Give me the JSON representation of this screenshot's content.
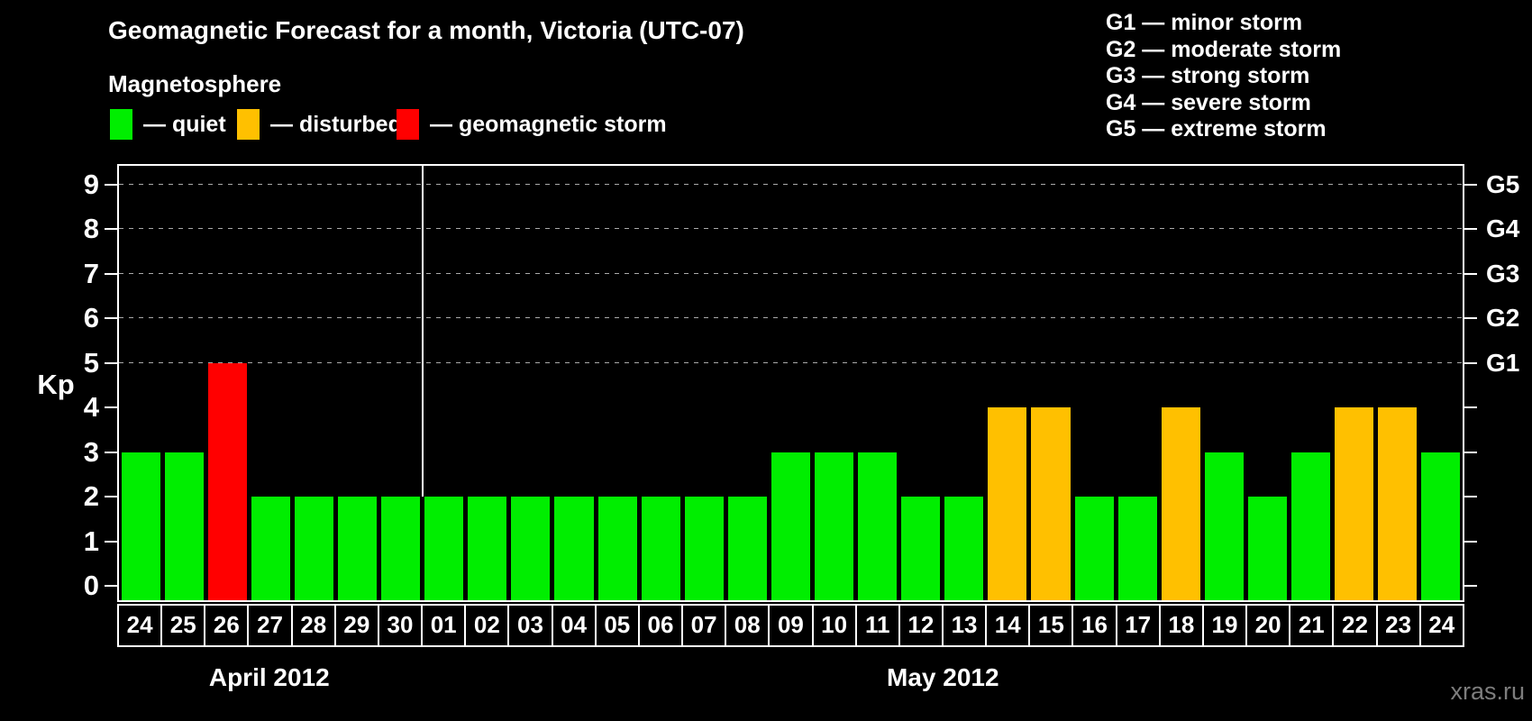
{
  "title": "Geomagnetic Forecast for a month, Victoria (UTC-07)",
  "legend": {
    "heading": "Magnetosphere",
    "items": [
      {
        "key": "quiet",
        "label": "— quiet",
        "color": "#00ee00"
      },
      {
        "key": "disturbed",
        "label": "— disturbed",
        "color": "#ffc000"
      },
      {
        "key": "storm",
        "label": "— geomagnetic storm",
        "color": "#ff0000"
      }
    ]
  },
  "g_legend": [
    "G1 — minor storm",
    "G2 — moderate storm",
    "G3 — strong storm",
    "G4 — severe storm",
    "G5 — extreme storm"
  ],
  "watermark": "xras.ru",
  "chart_data": {
    "type": "bar",
    "title": "Geomagnetic Forecast for a month, Victoria (UTC-07)",
    "xlabel": "",
    "ylabel": "Kp",
    "ylim": [
      0,
      9
    ],
    "y_ticks": [
      "0",
      "1",
      "2",
      "3",
      "4",
      "5",
      "6",
      "7",
      "8",
      "9"
    ],
    "gridline_levels": [
      5,
      6,
      7,
      8,
      9
    ],
    "grid": "dashed horizontal lines at Kp 5-9 only",
    "legend_position": "top",
    "right_axis": [
      {
        "level": 5,
        "label": "G1"
      },
      {
        "level": 6,
        "label": "G2"
      },
      {
        "level": 7,
        "label": "G3"
      },
      {
        "level": 8,
        "label": "G4"
      },
      {
        "level": 9,
        "label": "G5"
      }
    ],
    "months": [
      {
        "label": "April 2012",
        "days": 7
      },
      {
        "label": "May 2012",
        "days": 24
      }
    ],
    "categories": [
      "24",
      "25",
      "26",
      "27",
      "28",
      "29",
      "30",
      "01",
      "02",
      "03",
      "04",
      "05",
      "06",
      "07",
      "08",
      "09",
      "10",
      "11",
      "12",
      "13",
      "14",
      "15",
      "16",
      "17",
      "18",
      "19",
      "20",
      "21",
      "22",
      "23",
      "24"
    ],
    "values": [
      3,
      3,
      5,
      2,
      2,
      2,
      2,
      2,
      2,
      2,
      2,
      2,
      2,
      2,
      2,
      3,
      3,
      3,
      2,
      2,
      4,
      4,
      2,
      2,
      4,
      3,
      2,
      3,
      4,
      4,
      3
    ],
    "statuses": [
      "quiet",
      "quiet",
      "storm",
      "quiet",
      "quiet",
      "quiet",
      "quiet",
      "quiet",
      "quiet",
      "quiet",
      "quiet",
      "quiet",
      "quiet",
      "quiet",
      "quiet",
      "quiet",
      "quiet",
      "quiet",
      "quiet",
      "quiet",
      "disturbed",
      "disturbed",
      "quiet",
      "quiet",
      "disturbed",
      "quiet",
      "quiet",
      "quiet",
      "disturbed",
      "disturbed",
      "quiet"
    ],
    "colors": {
      "quiet": "#00ee00",
      "disturbed": "#ffc000",
      "storm": "#ff0000"
    }
  }
}
